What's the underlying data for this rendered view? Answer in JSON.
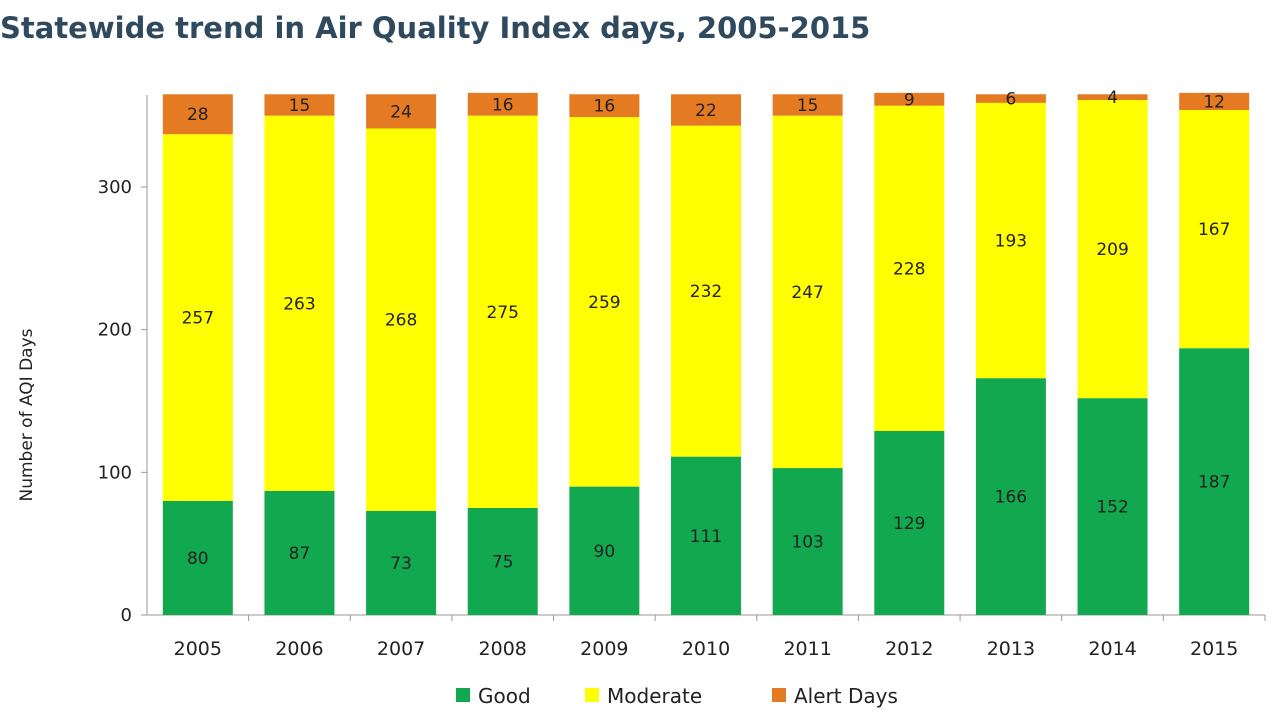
{
  "chart_data": {
    "type": "bar",
    "stacked": true,
    "title": "Statewide trend in Air Quality Index days, 2005-2015",
    "xlabel": "",
    "ylabel": "Number of AQI Days",
    "ylim": [
      0,
      365
    ],
    "yticks": [
      0,
      100,
      200,
      300
    ],
    "grid": false,
    "legend_position": "bottom",
    "categories": [
      "2005",
      "2006",
      "2007",
      "2008",
      "2009",
      "2010",
      "2011",
      "2012",
      "2013",
      "2014",
      "2015"
    ],
    "series": [
      {
        "name": "Good",
        "color": "#11a84f",
        "values": [
          80,
          87,
          73,
          75,
          90,
          111,
          103,
          129,
          166,
          152,
          187
        ]
      },
      {
        "name": "Moderate",
        "color": "#ffff00",
        "values": [
          257,
          263,
          268,
          275,
          259,
          232,
          247,
          228,
          193,
          209,
          167
        ]
      },
      {
        "name": "Alert Days",
        "color": "#e47a22",
        "values": [
          28,
          15,
          24,
          16,
          16,
          22,
          15,
          9,
          6,
          4,
          12
        ]
      }
    ]
  }
}
